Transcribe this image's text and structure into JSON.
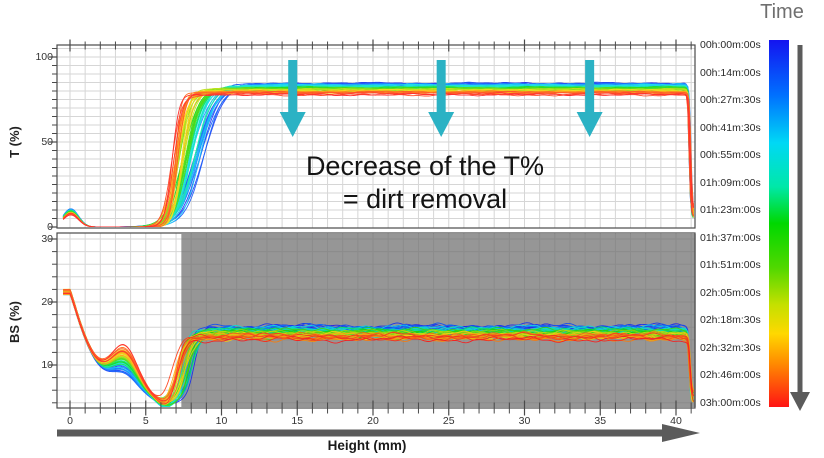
{
  "legend": {
    "title": "Time",
    "timestamps": [
      "00h:00m:00s",
      "00h:14m:00s",
      "00h:27m:30s",
      "00h:41m:30s",
      "00h:55m:00s",
      "01h:09m:00s",
      "01h:23m:00s",
      "01h:37m:00s",
      "01h:51m:00s",
      "02h:05m:00s",
      "02h:18m:30s",
      "02h:32m:30s",
      "02h:46m:00s",
      "03h:00m:00s"
    ],
    "gradient_stops": [
      [
        0,
        "#1414f0"
      ],
      [
        0.15,
        "#0070ff"
      ],
      [
        0.28,
        "#00d8f5"
      ],
      [
        0.4,
        "#00e8a8"
      ],
      [
        0.5,
        "#00d800"
      ],
      [
        0.62,
        "#50d800"
      ],
      [
        0.72,
        "#c3e000"
      ],
      [
        0.8,
        "#ffd800"
      ],
      [
        0.88,
        "#ff8c00"
      ],
      [
        1,
        "#ff1414"
      ]
    ]
  },
  "annotation": {
    "line1": "Decrease of the T%",
    "line2": "= dirt removal"
  },
  "t_chart": {
    "ylabel": "T (%)",
    "yticks": [
      "100",
      "50",
      "0"
    ]
  },
  "bs_chart": {
    "ylabel": "BS (%)",
    "yticks": [
      "30",
      "20",
      "10"
    ]
  },
  "x_axis": {
    "label": "Height (mm)",
    "ticks": [
      "0",
      "5",
      "10",
      "15",
      "20",
      "25",
      "30",
      "35",
      "40"
    ]
  },
  "colors": {
    "annotation_arrow": "#2bb2c4",
    "axis_arrow": "#5b5b5b",
    "shaded_region": "rgba(110,110,110,0.72)",
    "grid": "#d6d6d6",
    "axis": "#4a4a4a",
    "plot_background": "#ffffff"
  },
  "chart_data": [
    {
      "type": "line",
      "title": "Transmission profiles over time (multi-scan bundle)",
      "xlabel": "Height (mm)",
      "ylabel": "T (%)",
      "xlim": [
        -0.9,
        41.3
      ],
      "ylim": [
        0,
        107
      ],
      "x_ticks": [
        0,
        5,
        10,
        15,
        20,
        25,
        30,
        35,
        40
      ],
      "y_ticks": [
        0,
        50,
        100
      ],
      "grid": true,
      "legend_position": "right-colorbar",
      "n_scans": 60,
      "time_range": [
        "00h:00m:00s",
        "03h:00m:00s"
      ],
      "profile": {
        "meniscus_peak_T_first_scan": 10.8,
        "meniscus_peak_T_last_scan": 8.0,
        "meniscus_width_mm": 0.72,
        "zero_transmission_zone_mm": [
          2.0,
          5.5
        ],
        "rise_mid_mm_first_scan": 8.6,
        "rise_mid_mm_last_scan": 6.85,
        "plateau_T_first_scan": 84.4,
        "plateau_T_last_scan": 78.0,
        "plateau_range_mm": [
          10,
          40.9
        ],
        "fall_mm": 40.92,
        "end_T": 8
      },
      "annotations": {
        "arrows_down_at_mm": [
          14.7,
          24.5,
          34.3
        ],
        "text": "Decrease of the T% = dirt removal"
      }
    },
    {
      "type": "line",
      "title": "Backscattering profiles over time (multi-scan bundle)",
      "xlabel": "Height (mm)",
      "ylabel": "BS (%)",
      "xlim": [
        -0.9,
        41.3
      ],
      "ylim": [
        3.2,
        30.5
      ],
      "x_ticks": [
        0,
        5,
        10,
        15,
        20,
        25,
        30,
        35,
        40
      ],
      "y_ticks": [
        10,
        20,
        30
      ],
      "grid": true,
      "legend_position": "right-colorbar",
      "n_scans": 60,
      "shaded_region_mm": [
        7.35,
        41.3
      ],
      "profile": {
        "start_BS_at_0mm": 21.6,
        "decay_to_BS": 6.0,
        "local_bump_mm": 3.62,
        "bump_BS_first_scan": 9.0,
        "bump_BS_last_scan": 12.6,
        "dip_mm": 6.35,
        "dip_BS": 4.3,
        "rise_mid_mm_first_scan": 8.05,
        "rise_mid_mm_last_scan": 7.1,
        "plateau_BS_first_scan": 15.95,
        "plateau_BS_last_scan": 14.35,
        "fall_mm": 40.9,
        "end_BS": 5
      }
    }
  ]
}
